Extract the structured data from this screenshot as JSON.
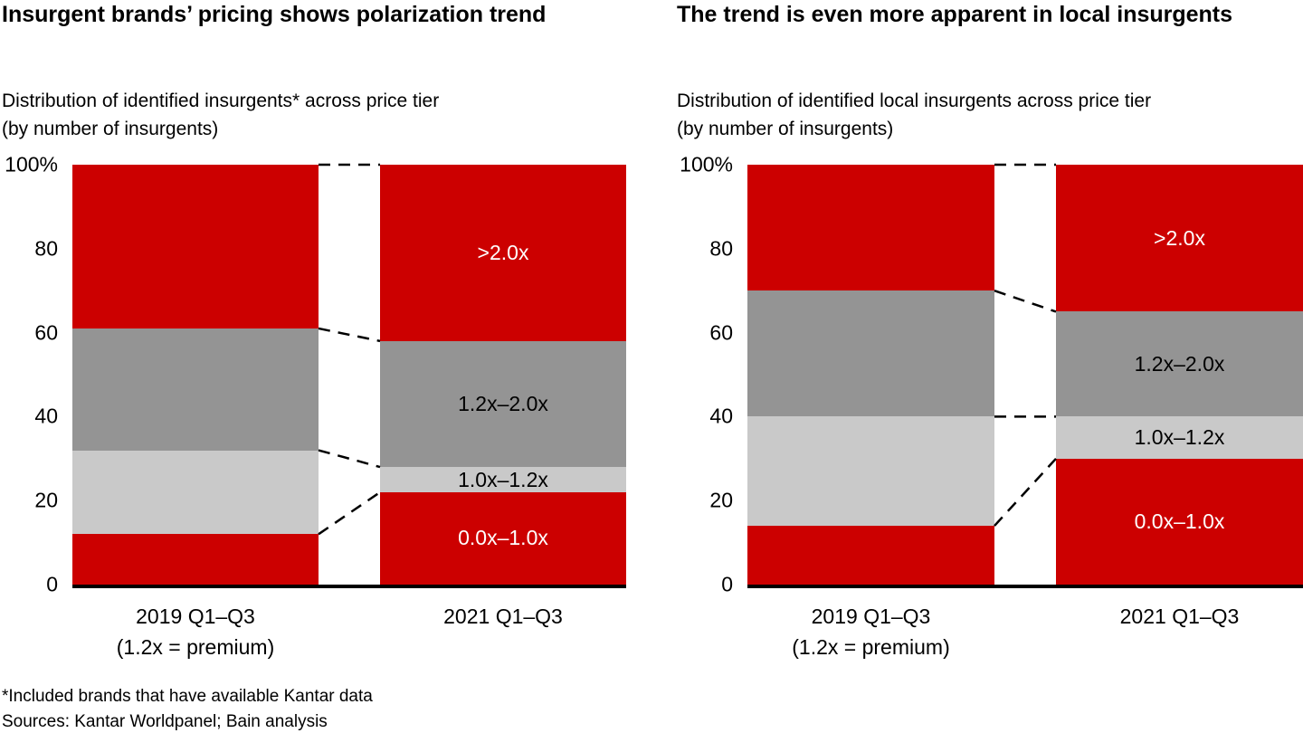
{
  "colors": {
    "red": "#cc0000",
    "dark_gray": "#949494",
    "light_gray": "#c9c9c9",
    "axis": "#000000",
    "background": "#ffffff"
  },
  "footnotes": [
    "*Included brands that have available Kantar data",
    "Sources: Kantar Worldpanel; Bain analysis"
  ],
  "chart_data": [
    {
      "type": "bar",
      "variant": "stacked-100-percent",
      "title": "Insurgent brands’ pricing shows polarization trend",
      "subtitle": "Distribution of identified insurgents* across price tier\n(by number of insurgents)",
      "categories": [
        "2019 Q1–Q3\n(1.2x = premium)",
        "2021 Q1–Q3"
      ],
      "xlabel": "",
      "ylabel": "",
      "ylim": [
        0,
        100
      ],
      "yticks": [
        "0",
        "20",
        "40",
        "60",
        "80",
        "100%"
      ],
      "grid": false,
      "legend_position": "labels-inside-second-bar",
      "connectors": "dashed-between-segment-boundaries",
      "series": [
        {
          "name": "0.0x–1.0x",
          "values": [
            12,
            22
          ],
          "color": "#cc0000",
          "label_color": "#ffffff"
        },
        {
          "name": "1.0x–1.2x",
          "values": [
            20,
            6
          ],
          "color": "#c9c9c9",
          "label_color": "#000000"
        },
        {
          "name": "1.2x–2.0x",
          "values": [
            29,
            30
          ],
          "color": "#949494",
          "label_color": "#000000"
        },
        {
          "name": ">2.0x",
          "values": [
            39,
            42
          ],
          "color": "#cc0000",
          "label_color": "#ffffff"
        }
      ]
    },
    {
      "type": "bar",
      "variant": "stacked-100-percent",
      "title": "The trend is even more apparent in local insurgents",
      "subtitle": "Distribution of identified local insurgents across price tier\n(by number of insurgents)",
      "categories": [
        "2019 Q1–Q3\n(1.2x = premium)",
        "2021 Q1–Q3"
      ],
      "xlabel": "",
      "ylabel": "",
      "ylim": [
        0,
        100
      ],
      "yticks": [
        "0",
        "20",
        "40",
        "60",
        "80",
        "100%"
      ],
      "grid": false,
      "legend_position": "labels-inside-second-bar",
      "connectors": "dashed-between-segment-boundaries",
      "series": [
        {
          "name": "0.0x–1.0x",
          "values": [
            14,
            30
          ],
          "color": "#cc0000",
          "label_color": "#ffffff"
        },
        {
          "name": "1.0x–1.2x",
          "values": [
            26,
            10
          ],
          "color": "#c9c9c9",
          "label_color": "#000000"
        },
        {
          "name": "1.2x–2.0x",
          "values": [
            30,
            25
          ],
          "color": "#949494",
          "label_color": "#000000"
        },
        {
          "name": ">2.0x",
          "values": [
            30,
            35
          ],
          "color": "#cc0000",
          "label_color": "#ffffff"
        }
      ]
    }
  ]
}
